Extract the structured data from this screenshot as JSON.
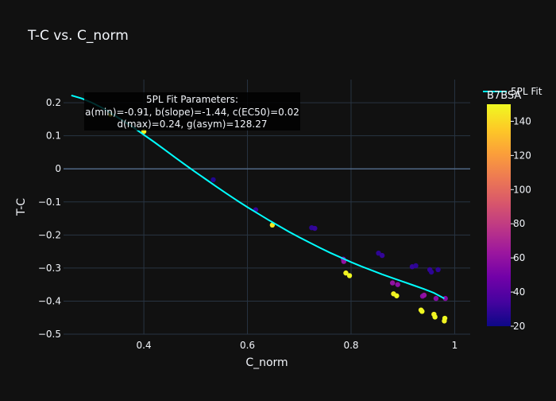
{
  "chart_data": {
    "type": "scatter",
    "title": "T-C vs. C_norm",
    "xlabel": "C_norm",
    "ylabel": "T-C",
    "xlim": [
      0.245,
      1.03
    ],
    "ylim": [
      -0.5,
      0.27
    ],
    "xticks": [
      {
        "value": 0.4,
        "label": "0.4"
      },
      {
        "value": 0.6,
        "label": "0.6"
      },
      {
        "value": 0.8,
        "label": "0.8"
      },
      {
        "value": 1.0,
        "label": "1"
      }
    ],
    "yticks": [
      {
        "value": 0.2,
        "label": "0.2"
      },
      {
        "value": 0.1,
        "label": "0.1"
      },
      {
        "value": 0.0,
        "label": "0"
      },
      {
        "value": -0.1,
        "label": "−0.1"
      },
      {
        "value": -0.2,
        "label": "−0.2"
      },
      {
        "value": -0.3,
        "label": "−0.3"
      },
      {
        "value": -0.4,
        "label": "−0.4"
      },
      {
        "value": -0.5,
        "label": "−0.5"
      }
    ],
    "grid": true,
    "legend": {
      "placement": "top-right",
      "entries": [
        {
          "name": "5PL Fit",
          "color": "#00ffff"
        }
      ]
    },
    "colorbar": {
      "title": "B7BSA",
      "min": 20,
      "max": 150,
      "ticks": [
        20,
        40,
        60,
        80,
        100,
        120,
        140
      ],
      "colorscale": [
        "#0d0887",
        "#46039f",
        "#7201a8",
        "#9c179e",
        "#bd3786",
        "#d8576b",
        "#ed7953",
        "#fb9f3a",
        "#fdca26",
        "#f0f921"
      ]
    },
    "annotation": {
      "lines": [
        "5PL Fit Parameters:",
        "a(min)=-0.91, b(slope)=-1.44, c(EC50)=0.02",
        "d(max)=0.24, g(asym)=128.27"
      ],
      "placement": "top-left"
    },
    "series": [
      {
        "name": "B7BSA",
        "type": "scatter",
        "points": [
          {
            "x": 0.336,
            "y": 0.165,
            "c": 150
          },
          {
            "x": 0.4,
            "y": 0.113,
            "c": 148
          },
          {
            "x": 0.534,
            "y": -0.033,
            "c": 25
          },
          {
            "x": 0.616,
            "y": -0.124,
            "c": 30
          },
          {
            "x": 0.648,
            "y": -0.17,
            "c": 145
          },
          {
            "x": 0.724,
            "y": -0.178,
            "c": 28
          },
          {
            "x": 0.73,
            "y": -0.18,
            "c": 30
          },
          {
            "x": 0.785,
            "y": -0.273,
            "c": 55
          },
          {
            "x": 0.786,
            "y": -0.28,
            "c": 60
          },
          {
            "x": 0.79,
            "y": -0.315,
            "c": 148
          },
          {
            "x": 0.797,
            "y": -0.323,
            "c": 150
          },
          {
            "x": 0.853,
            "y": -0.255,
            "c": 28
          },
          {
            "x": 0.86,
            "y": -0.262,
            "c": 30
          },
          {
            "x": 0.88,
            "y": -0.345,
            "c": 60
          },
          {
            "x": 0.882,
            "y": -0.378,
            "c": 148
          },
          {
            "x": 0.888,
            "y": -0.384,
            "c": 150
          },
          {
            "x": 0.89,
            "y": -0.35,
            "c": 58
          },
          {
            "x": 0.918,
            "y": -0.296,
            "c": 30
          },
          {
            "x": 0.925,
            "y": -0.293,
            "c": 28
          },
          {
            "x": 0.935,
            "y": -0.427,
            "c": 148
          },
          {
            "x": 0.937,
            "y": -0.431,
            "c": 150
          },
          {
            "x": 0.938,
            "y": -0.385,
            "c": 55
          },
          {
            "x": 0.941,
            "y": -0.382,
            "c": 60
          },
          {
            "x": 0.952,
            "y": -0.305,
            "c": 30
          },
          {
            "x": 0.955,
            "y": -0.312,
            "c": 28
          },
          {
            "x": 0.96,
            "y": -0.44,
            "c": 148
          },
          {
            "x": 0.962,
            "y": -0.448,
            "c": 150
          },
          {
            "x": 0.964,
            "y": -0.392,
            "c": 55
          },
          {
            "x": 0.968,
            "y": -0.305,
            "c": 28
          },
          {
            "x": 0.98,
            "y": -0.46,
            "c": 148
          },
          {
            "x": 0.981,
            "y": -0.452,
            "c": 150
          },
          {
            "x": 0.982,
            "y": -0.392,
            "c": 55
          }
        ]
      },
      {
        "name": "5PL Fit",
        "type": "line",
        "color": "#00ffff",
        "x": [
          0.26,
          0.28,
          0.3,
          0.32,
          0.34,
          0.36,
          0.38,
          0.4,
          0.42,
          0.44,
          0.46,
          0.48,
          0.5,
          0.52,
          0.54,
          0.56,
          0.58,
          0.6,
          0.62,
          0.64,
          0.66,
          0.68,
          0.7,
          0.72,
          0.74,
          0.76,
          0.78,
          0.8,
          0.82,
          0.84,
          0.86,
          0.88,
          0.9,
          0.92,
          0.94,
          0.96,
          0.98
        ],
        "y": [
          0.222,
          0.213,
          0.2,
          0.184,
          0.165,
          0.145,
          0.125,
          0.103,
          0.081,
          0.058,
          0.035,
          0.012,
          -0.01,
          -0.032,
          -0.054,
          -0.075,
          -0.096,
          -0.116,
          -0.135,
          -0.154,
          -0.172,
          -0.19,
          -0.207,
          -0.223,
          -0.239,
          -0.254,
          -0.268,
          -0.282,
          -0.295,
          -0.307,
          -0.319,
          -0.33,
          -0.341,
          -0.352,
          -0.363,
          -0.375,
          -0.392
        ]
      }
    ]
  }
}
